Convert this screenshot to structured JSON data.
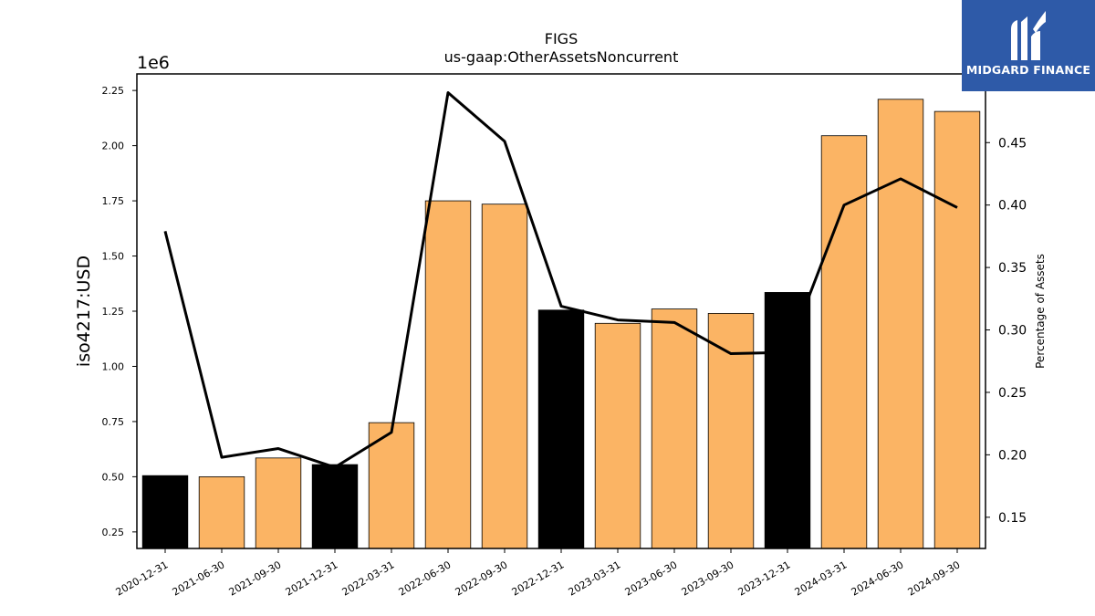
{
  "chart_data": {
    "type": "bar",
    "title": "FIGS",
    "subtitle": "us-gaap:OtherAssetsNoncurrent",
    "ylabel": "iso4217:USD",
    "y2label": "Percentage of Assets",
    "offset_label": "1e6",
    "categories": [
      "2020-12-31",
      "2021-06-30",
      "2021-09-30",
      "2021-12-31",
      "2022-03-31",
      "2022-06-30",
      "2022-09-30",
      "2022-12-31",
      "2023-03-31",
      "2023-06-30",
      "2023-09-30",
      "2023-12-31",
      "2024-03-31",
      "2024-06-30",
      "2024-09-30"
    ],
    "values": [
      0.505,
      0.5,
      0.585,
      0.555,
      0.745,
      1.75,
      1.735,
      1.255,
      1.195,
      1.26,
      1.24,
      1.335,
      2.045,
      2.21,
      2.155
    ],
    "annual": [
      true,
      false,
      false,
      true,
      false,
      false,
      false,
      true,
      false,
      false,
      false,
      true,
      false,
      false,
      false
    ],
    "pct_assets": [
      0.379,
      0.198,
      0.205,
      0.19,
      0.218,
      0.49,
      0.451,
      0.319,
      0.308,
      0.306,
      0.281,
      0.282,
      0.4,
      0.421,
      0.398
    ],
    "ylim": [
      0.175,
      2.325
    ],
    "y2lim": [
      0.125,
      0.505
    ],
    "yticks": [
      "0.25",
      "0.50",
      "0.75",
      "1.00",
      "1.25",
      "1.50",
      "1.75",
      "2.00",
      "2.25"
    ],
    "y2ticks": [
      "0.15",
      "0.20",
      "0.25",
      "0.30",
      "0.35",
      "0.40",
      "0.45"
    ],
    "colors": {
      "annual": "#000000",
      "quarterly": "#fbb464",
      "line": "#000000"
    }
  },
  "logo": {
    "text": "MIDGARD FINANCE"
  }
}
